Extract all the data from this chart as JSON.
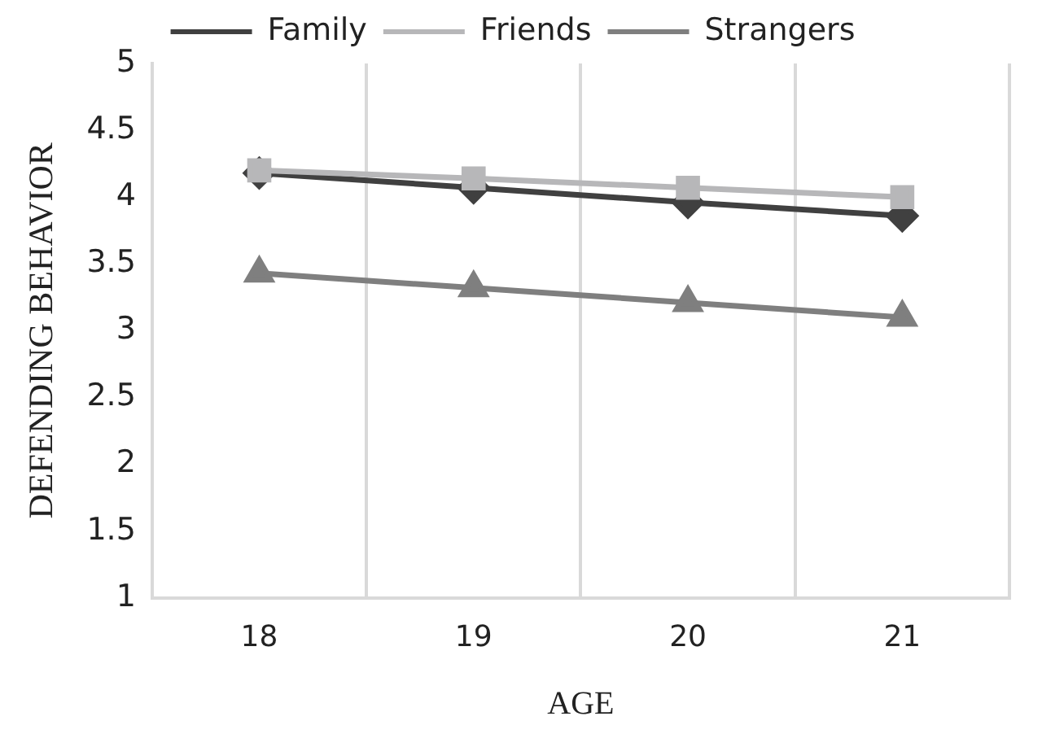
{
  "chart_data": {
    "type": "line",
    "xlabel": "AGE",
    "ylabel": "DEFENDING BEHAVIOR",
    "categories": [
      "18",
      "19",
      "20",
      "21"
    ],
    "series": [
      {
        "name": "Family",
        "color": "#404040",
        "marker": "diamond",
        "values": [
          4.18,
          4.07,
          3.96,
          3.86
        ]
      },
      {
        "name": "Friends",
        "color": "#b7b7b9",
        "marker": "square",
        "values": [
          4.2,
          4.14,
          4.07,
          4.0
        ]
      },
      {
        "name": "Strangers",
        "color": "#7f7f7f",
        "marker": "triangle",
        "values": [
          3.43,
          3.32,
          3.21,
          3.1
        ]
      }
    ],
    "ylim": [
      1,
      5
    ],
    "yticks": [
      1,
      1.5,
      2,
      2.5,
      3,
      3.5,
      4,
      4.5,
      5
    ],
    "grid": "x",
    "legend": "top"
  }
}
